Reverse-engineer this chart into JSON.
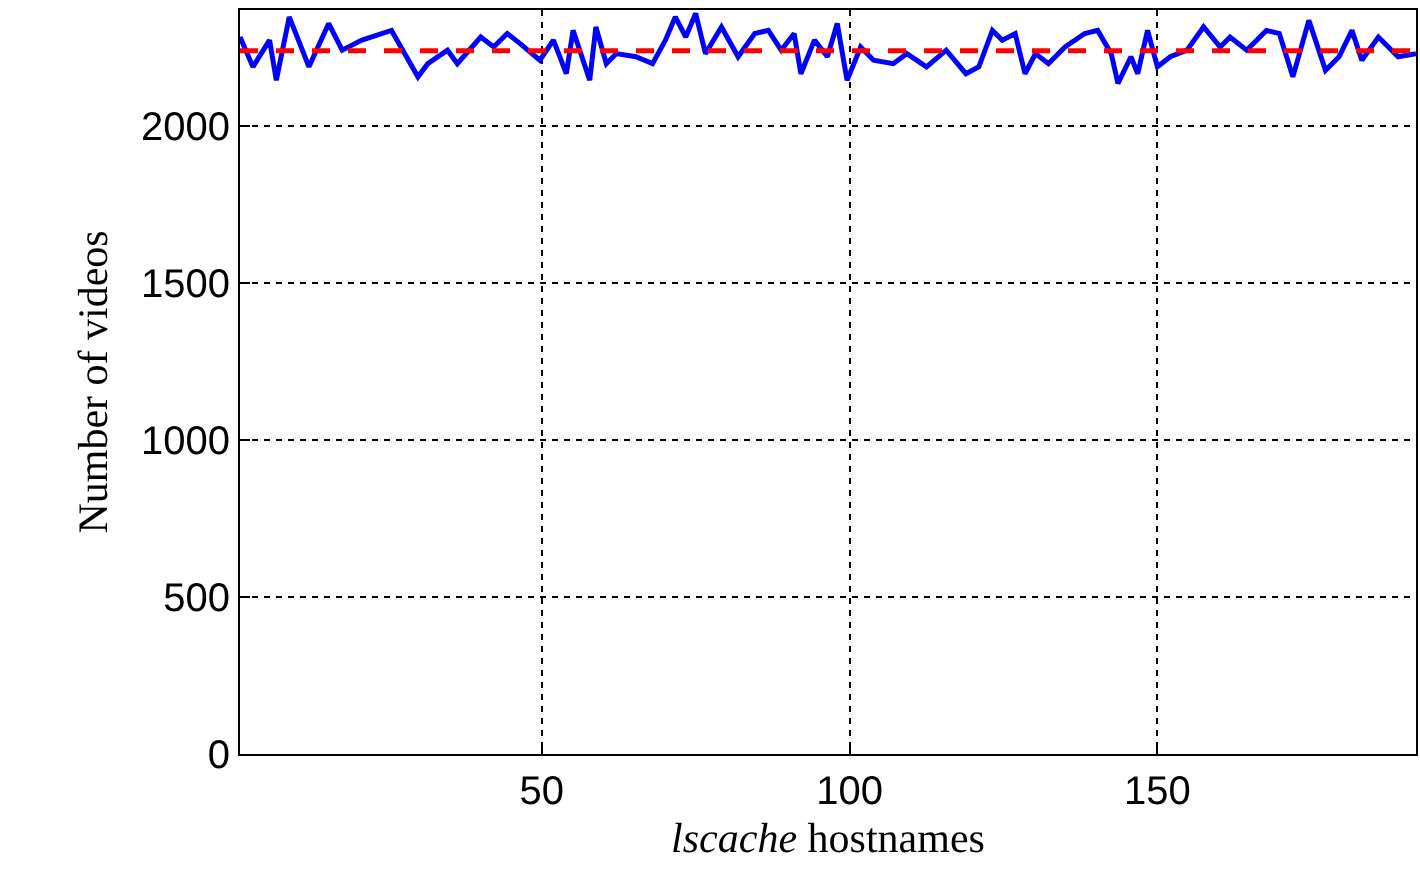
{
  "chart_data": {
    "type": "line",
    "xlabel": "lscache hostnames",
    "ylabel": "Number of videos",
    "xlim": [
      1,
      192
    ],
    "xticks": [
      50,
      100,
      150
    ],
    "ylim": [
      0,
      2370
    ],
    "yticks": [
      0,
      500,
      1000,
      1500,
      2000
    ],
    "grid": true,
    "line_style": "solid",
    "marker": "none",
    "series": [
      {
        "color": "#0000ff",
        "x": [
          1,
          3.1,
          5.8,
          6.9,
          9,
          12.2,
          15.4,
          17.6,
          20.8,
          25.6,
          29.9,
          31.5,
          34.7,
          36.3,
          40.1,
          42.2,
          44.4,
          46.5,
          49.7,
          51.9,
          54,
          55.1,
          57.8,
          58.8,
          60.5,
          62.1,
          65.3,
          68,
          70.1,
          71.7,
          73.4,
          75,
          76.6,
          79.2,
          81.9,
          84.6,
          86.8,
          88.9,
          91,
          92.1,
          94.3,
          96.4,
          98,
          99.6,
          101.8,
          103.9,
          107.1,
          109.3,
          112.5,
          115.7,
          118.9,
          121,
          123.2,
          124.8,
          126.9,
          128.5,
          130.2,
          132.3,
          135,
          138.2,
          140.3,
          142.5,
          143.6,
          145.7,
          146.8,
          148.4,
          150,
          152.1,
          154.8,
          157.5,
          160.2,
          161.8,
          164.5,
          167.7,
          169.8,
          172,
          174.6,
          177.3,
          179.5,
          181.6,
          183.2,
          185.9,
          189.1,
          192
        ],
        "values": [
          2284,
          2189,
          2274,
          2146,
          2348,
          2189,
          2327,
          2242,
          2274,
          2305,
          2157,
          2199,
          2242,
          2199,
          2284,
          2252,
          2295,
          2263,
          2210,
          2274,
          2167,
          2305,
          2146,
          2316,
          2199,
          2231,
          2221,
          2199,
          2274,
          2348,
          2284,
          2359,
          2231,
          2316,
          2221,
          2295,
          2305,
          2242,
          2295,
          2167,
          2274,
          2221,
          2327,
          2146,
          2252,
          2210,
          2199,
          2231,
          2189,
          2242,
          2167,
          2189,
          2305,
          2274,
          2295,
          2167,
          2231,
          2199,
          2252,
          2295,
          2305,
          2231,
          2136,
          2221,
          2167,
          2305,
          2189,
          2221,
          2242,
          2316,
          2252,
          2284,
          2242,
          2305,
          2295,
          2157,
          2337,
          2178,
          2221,
          2305,
          2210,
          2284,
          2221,
          2231
        ]
      }
    ],
    "ref_lines": [
      {
        "axis": "y",
        "value": 2240,
        "color": "#ff0000",
        "line_style": "dashed"
      }
    ]
  }
}
